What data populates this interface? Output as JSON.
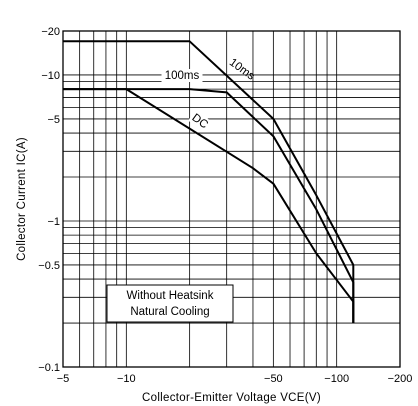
{
  "chart_data": {
    "type": "line",
    "xscale": "log",
    "yscale": "log",
    "xlim": [
      -5,
      -200
    ],
    "ylim": [
      -0.1,
      -20
    ],
    "xlabel": "Collector-Emitter Voltage VCE(V)",
    "ylabel": "Collector Current IC(A)",
    "x_ticks": [
      {
        "value": -5,
        "label": "−5"
      },
      {
        "value": -10,
        "label": "−10"
      },
      {
        "value": -50,
        "label": "−50"
      },
      {
        "value": -100,
        "label": "−100"
      },
      {
        "value": -200,
        "label": "−200"
      }
    ],
    "y_ticks": [
      {
        "value": -0.1,
        "label": "−0.1"
      },
      {
        "value": -0.5,
        "label": "−0.5"
      },
      {
        "value": -1,
        "label": "−1"
      },
      {
        "value": -5,
        "label": "−5"
      },
      {
        "value": -10,
        "label": "−10"
      },
      {
        "value": -20,
        "label": "−20"
      }
    ],
    "grid": true,
    "series": [
      {
        "name": "10ms",
        "x": [
          -5,
          -20,
          -50,
          -80,
          -120,
          -120
        ],
        "y": [
          -17,
          -17,
          -5,
          -1.5,
          -0.5,
          -0.2
        ]
      },
      {
        "name": "100ms",
        "x": [
          -5,
          -20,
          -30,
          -50,
          -80,
          -120,
          -120
        ],
        "y": [
          -8,
          -8,
          -7.6,
          -3.8,
          -1.2,
          -0.38,
          -0.2
        ]
      },
      {
        "name": "DC",
        "x": [
          -5,
          -10,
          -40,
          -50,
          -80,
          -120,
          -120
        ],
        "y": [
          -8,
          -8,
          -2.3,
          -1.8,
          -0.6,
          -0.28,
          -0.2
        ]
      }
    ],
    "annotations": [
      "Without Heatsink",
      "Natural Cooling"
    ]
  }
}
